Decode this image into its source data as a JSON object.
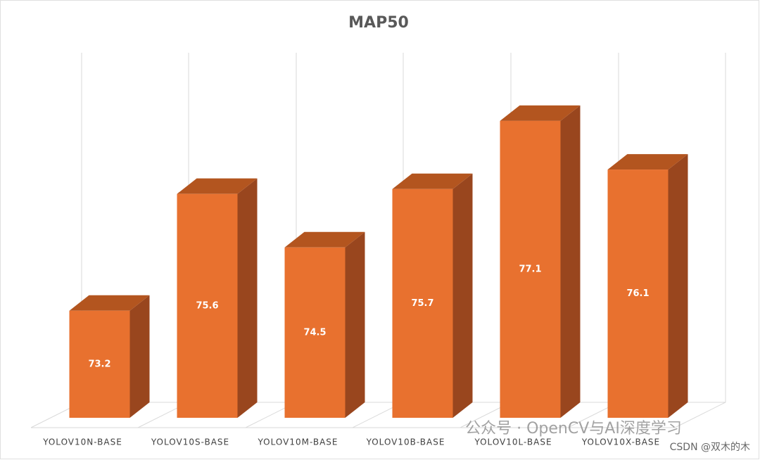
{
  "chart_data": {
    "type": "bar3d",
    "title": "MAP50",
    "categories": [
      "YOLOV10N-BASE",
      "YOLOV10S-BASE",
      "YOLOV10M-BASE",
      "YOLOV10B-BASE",
      "YOLOV10L-BASE",
      "YOLOV10X-BASE"
    ],
    "values": [
      73.2,
      75.6,
      74.5,
      75.7,
      77.1,
      76.1
    ],
    "color": "#e8712f",
    "ylim": [
      71,
      78.5
    ],
    "grid": true,
    "annotations": [
      "公众号 · OpenCV与AI深度学习",
      "CSDN @双木的木"
    ]
  }
}
